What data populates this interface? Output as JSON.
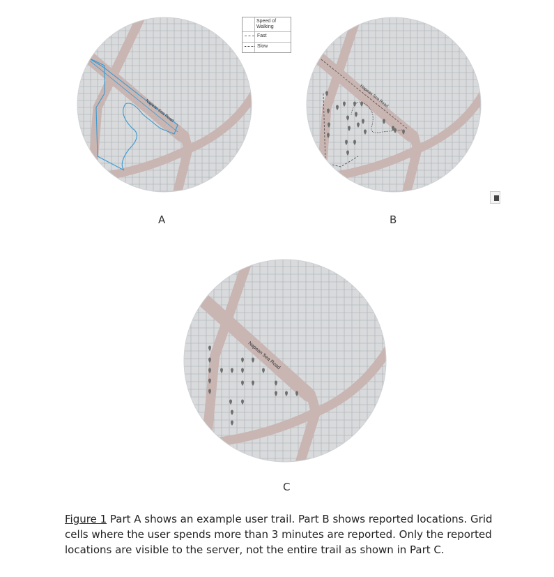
{
  "legend": {
    "title": "Speed of Walking",
    "fast_label": "Fast",
    "slow_label": "Slow"
  },
  "panels": {
    "a": {
      "letter": "A",
      "road_label": "Napean Sea Road"
    },
    "b": {
      "letter": "B",
      "road_label": "Napean Sea Road"
    },
    "c": {
      "letter": "C",
      "road_label": "Napean Sea Road"
    }
  },
  "caption": {
    "figure_ref": "Figure 1",
    "text": " Part A shows an example user trail. Part B shows reported locations. Grid cells where the user spends more than 3 minutes are reported. Only the reported locations are visible to the server, not the entire trail as shown in Part C."
  },
  "colors": {
    "map_bg": "#d8dadc",
    "grid": "#a9adb2",
    "road": "#c9b5b2",
    "trail": "#3a9ad1",
    "pin": "#6e6e6e",
    "dashed_path": "#555555"
  },
  "icons": [
    "location-pin-icon",
    "edge-widget-icon"
  ]
}
